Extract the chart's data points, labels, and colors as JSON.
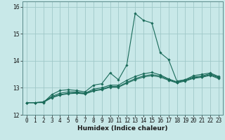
{
  "xlabel": "Humidex (Indice chaleur)",
  "ylabel": "",
  "background_color": "#c8e8e8",
  "grid_color": "#a0c8c8",
  "line_color": "#1a6b5a",
  "spine_color": "#5a8a8a",
  "x_values": [
    0,
    1,
    2,
    3,
    4,
    5,
    6,
    7,
    8,
    9,
    10,
    11,
    12,
    13,
    14,
    15,
    16,
    17,
    18,
    19,
    20,
    21,
    22,
    23
  ],
  "lines": [
    [
      12.45,
      12.45,
      12.45,
      12.75,
      12.9,
      12.93,
      12.9,
      12.85,
      13.1,
      13.15,
      13.55,
      13.3,
      13.85,
      15.75,
      15.5,
      15.4,
      14.3,
      14.05,
      13.25,
      13.3,
      13.45,
      13.5,
      13.55,
      13.42
    ],
    [
      12.45,
      12.45,
      12.48,
      12.68,
      12.8,
      12.85,
      12.85,
      12.8,
      12.95,
      13.0,
      13.1,
      13.1,
      13.28,
      13.42,
      13.52,
      13.57,
      13.48,
      13.33,
      13.22,
      13.3,
      13.4,
      13.44,
      13.52,
      13.39
    ],
    [
      12.45,
      12.45,
      12.47,
      12.65,
      12.75,
      12.8,
      12.82,
      12.79,
      12.9,
      12.95,
      13.05,
      13.05,
      13.2,
      13.34,
      13.44,
      13.49,
      13.44,
      13.31,
      13.2,
      13.27,
      13.37,
      13.41,
      13.49,
      13.37
    ],
    [
      12.45,
      12.45,
      12.46,
      12.63,
      12.73,
      12.78,
      12.8,
      12.77,
      12.88,
      12.93,
      13.02,
      13.02,
      13.17,
      13.3,
      13.4,
      13.45,
      13.4,
      13.28,
      13.18,
      13.25,
      13.35,
      13.39,
      13.46,
      13.34
    ]
  ],
  "ylim": [
    12.0,
    16.2
  ],
  "yticks": [
    12,
    13,
    14,
    15,
    16
  ],
  "xlim": [
    -0.5,
    23.5
  ],
  "markersize": 1.8,
  "linewidth": 0.8,
  "label_fontsize": 6.5,
  "tick_fontsize": 5.5
}
